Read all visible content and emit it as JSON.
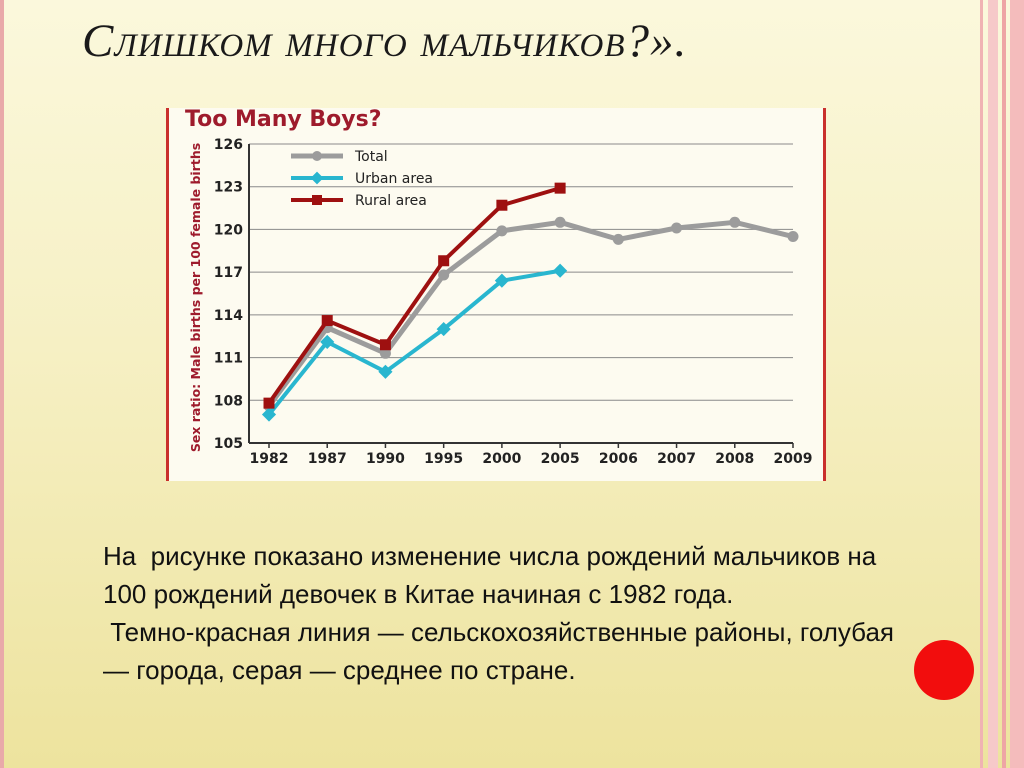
{
  "slide": {
    "title": "Слишком много мальчиков?».",
    "paragraph1": "На  рисунке показано изменение числа рождений мальчиков на 100 рождений девочек в Китае начиная с 1982 года.",
    "paragraph2": " Темно-красная линия — сельскохозяйственные районы, голубая — города, серая — среднее по стране."
  },
  "colors": {
    "total": "#9c9c9c",
    "urban": "#29b6cf",
    "rural": "#9e1010",
    "accent_red": "#f20d0d",
    "chart_title": "#9e1b2c"
  },
  "chart_data": {
    "type": "line",
    "title": "Too Many Boys?",
    "xlabel": "",
    "ylabel": "Sex ratio: Male births per 100 female births",
    "categories": [
      "1982",
      "1987",
      "1990",
      "1995",
      "2000",
      "2005",
      "2006",
      "2007",
      "2008",
      "2009"
    ],
    "ylim": [
      105,
      126
    ],
    "yticks": [
      105,
      108,
      111,
      114,
      117,
      120,
      123,
      126
    ],
    "grid": true,
    "legend": "top-left",
    "series": [
      {
        "name": "Total",
        "values": [
          107.6,
          113.1,
          111.3,
          116.8,
          119.9,
          120.5,
          119.3,
          120.1,
          120.5,
          119.5
        ]
      },
      {
        "name": "Urban area",
        "values": [
          107.0,
          112.1,
          110.0,
          113.0,
          116.4,
          117.1,
          null,
          null,
          null,
          null
        ]
      },
      {
        "name": "Rural area",
        "values": [
          107.8,
          113.6,
          111.9,
          117.8,
          121.7,
          122.9,
          null,
          null,
          null,
          null
        ]
      }
    ]
  }
}
